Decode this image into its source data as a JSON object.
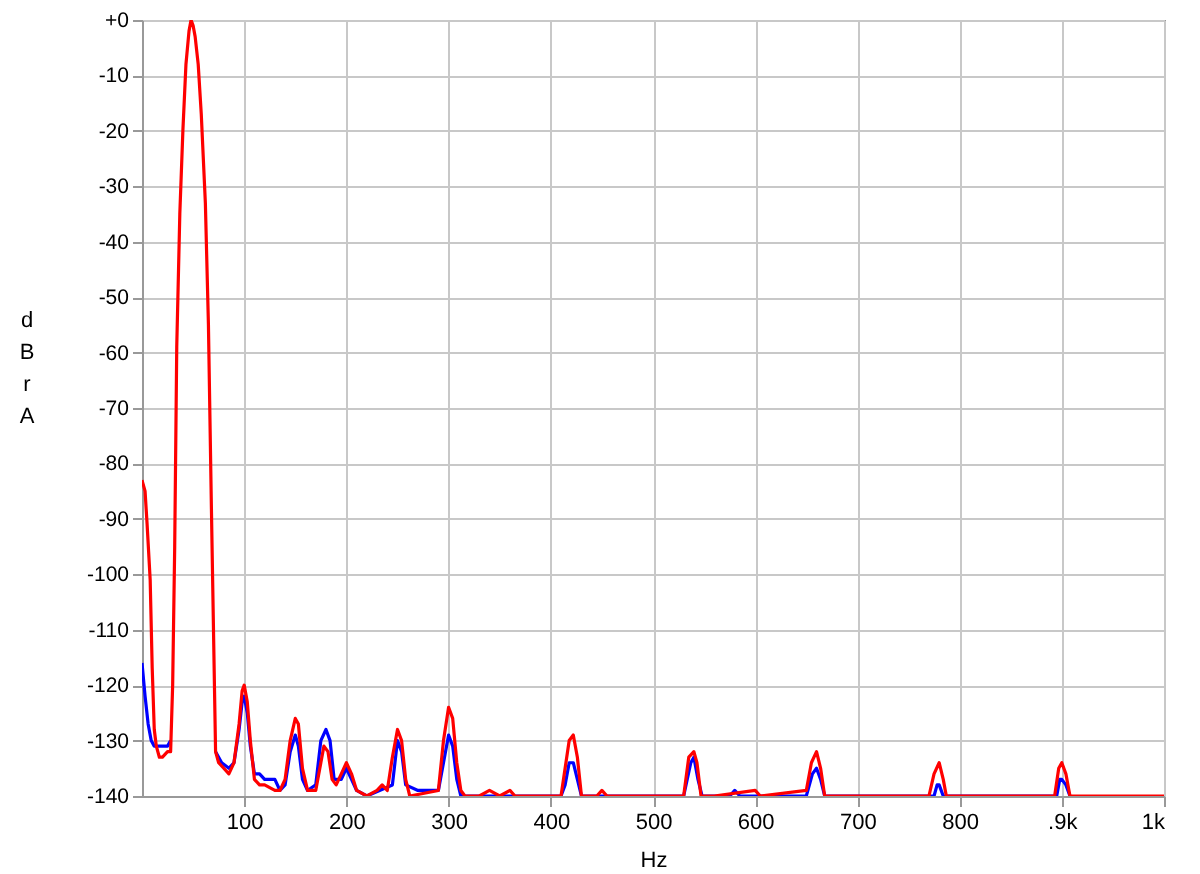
{
  "chart_data": {
    "type": "line",
    "xlabel": "Hz",
    "ylabel": "dBr A",
    "xlim": [
      0,
      1000
    ],
    "ylim": [
      -140,
      0
    ],
    "xticks": [
      100,
      200,
      300,
      400,
      500,
      600,
      700,
      800,
      {
        "value": 900,
        "label": ".9k"
      },
      {
        "value": 1000,
        "label": "1k"
      }
    ],
    "yticks": [
      {
        "value": 0,
        "label": "+0"
      },
      -10,
      -20,
      -30,
      -40,
      -50,
      -60,
      -70,
      -80,
      -90,
      -100,
      -110,
      -120,
      -130,
      -140
    ],
    "grid": true,
    "line_style": "solid",
    "x": [
      0,
      3,
      5,
      8,
      10,
      12,
      14,
      17,
      20,
      25,
      28,
      30,
      32,
      34,
      37,
      40,
      43,
      46,
      48,
      50,
      52,
      55,
      58,
      62,
      65,
      68,
      72,
      75,
      80,
      85,
      90,
      95,
      98,
      100,
      103,
      106,
      110,
      115,
      120,
      130,
      135,
      140,
      145,
      150,
      153,
      157,
      162,
      170,
      175,
      178,
      182,
      186,
      190,
      195,
      200,
      205,
      210,
      220,
      230,
      235,
      240,
      245,
      250,
      254,
      258,
      262,
      290,
      295,
      300,
      304,
      308,
      312,
      316,
      330,
      340,
      350,
      360,
      365,
      410,
      414,
      418,
      422,
      426,
      430,
      445,
      450,
      455,
      530,
      535,
      540,
      543,
      547,
      560,
      600,
      605,
      650,
      655,
      660,
      664,
      668,
      770,
      775,
      780,
      784,
      787,
      893,
      897,
      900,
      904,
      908,
      1000
    ],
    "series": [
      {
        "color": "#0000ff",
        "x": [
          0,
          3,
          6,
          9,
          12,
          16,
          20,
          25,
          28,
          50,
          72,
          78,
          85,
          90,
          95,
          98,
          100,
          103,
          106,
          110,
          115,
          120,
          125,
          130,
          135,
          140,
          145,
          150,
          153,
          157,
          162,
          170,
          175,
          180,
          184,
          188,
          195,
          200,
          205,
          210,
          220,
          245,
          250,
          254,
          258,
          270,
          280,
          290,
          295,
          300,
          304,
          308,
          312,
          410,
          414,
          418,
          422,
          426,
          430,
          530,
          537,
          540,
          544,
          548,
          575,
          580,
          585,
          650,
          656,
          660,
          664,
          668,
          775,
          778,
          780,
          784,
          895,
          898,
          900,
          904,
          908
        ],
        "values": [
          -116,
          -122,
          -127,
          -130,
          -131,
          -131,
          -131,
          -131,
          -130,
          null,
          -132,
          -134,
          -135,
          -134,
          -128,
          -123,
          -122,
          -125,
          -131,
          -136,
          -136,
          -137,
          -137,
          -137,
          -139,
          -138,
          -132,
          -129,
          -131,
          -137,
          -139,
          -138,
          -130,
          -128,
          -130,
          -137,
          -137,
          -135,
          -137,
          -139,
          -140,
          -138,
          -130,
          -132,
          -138,
          -139,
          -139,
          -139,
          -134,
          -129,
          -131,
          -137,
          -140,
          -140,
          -138,
          -134,
          -134,
          -137,
          -140,
          -140,
          -134,
          -133,
          -137,
          -140,
          -140,
          -139,
          -140,
          -140,
          -136,
          -135,
          -137,
          -140,
          -140,
          -138,
          -138,
          -140,
          -140,
          -137,
          -137,
          -138,
          -140
        ]
      },
      {
        "color": "#ff0000",
        "values": [
          -83,
          -85,
          -91,
          -101,
          -117,
          -128,
          -131,
          -133,
          -133,
          -132,
          -132,
          -120,
          -95,
          -59,
          -35,
          -20,
          -8,
          -2,
          0,
          -1,
          -3,
          -8,
          -17,
          -33,
          -55,
          -89,
          -132,
          -134,
          -135,
          -136,
          -134,
          -127,
          -121,
          -120,
          -123,
          -130,
          -137,
          -138,
          -138,
          -139,
          -139,
          -137,
          -130,
          -126,
          -127,
          -135,
          -139,
          -139,
          -134,
          -131,
          -132,
          -137,
          -138,
          -136,
          -134,
          -136,
          -139,
          -140,
          -139,
          -138,
          -139,
          -133,
          -128,
          -130,
          -137,
          -140,
          -139,
          -130,
          -124,
          -126,
          -134,
          -139,
          -140,
          -140,
          -139,
          -140,
          -139,
          -140,
          -140,
          -135,
          -130,
          -129,
          -133,
          -140,
          -140,
          -139,
          -140,
          -140,
          -133,
          -132,
          -134,
          -140,
          -140,
          -139,
          -140,
          -139,
          -134,
          -132,
          -135,
          -140,
          -140,
          -136,
          -134,
          -137,
          -140,
          -140,
          -135,
          -134,
          -136,
          -140,
          -140
        ]
      }
    ]
  }
}
